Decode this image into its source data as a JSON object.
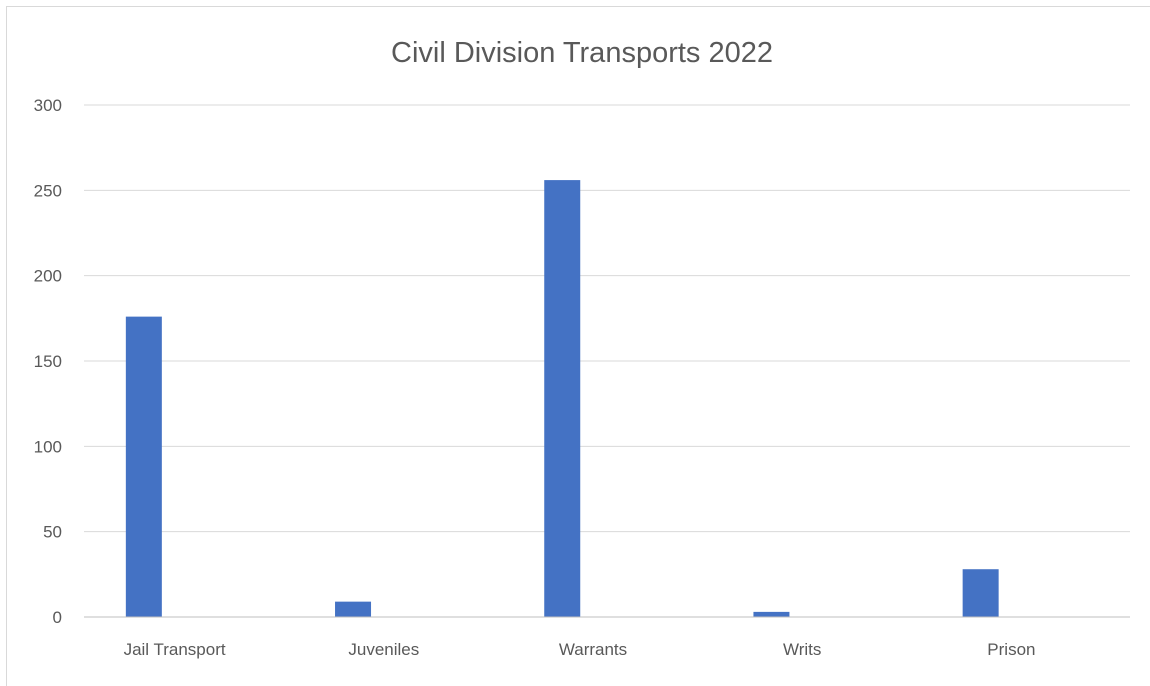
{
  "chart_data": {
    "type": "bar",
    "title": "Civil Division Transports 2022",
    "xlabel": "",
    "ylabel": "",
    "categories": [
      "Jail Transport",
      "Juveniles",
      "Warrants",
      "Writs",
      "Prison"
    ],
    "series": [
      {
        "values": [
          176,
          9,
          256,
          3,
          28
        ]
      }
    ],
    "ylim": [
      0,
      300
    ],
    "yticks": [
      "0",
      "50",
      "100",
      "150",
      "200",
      "250",
      "300"
    ],
    "grid": true,
    "legend": "none",
    "bar_color": "#4472c4"
  }
}
